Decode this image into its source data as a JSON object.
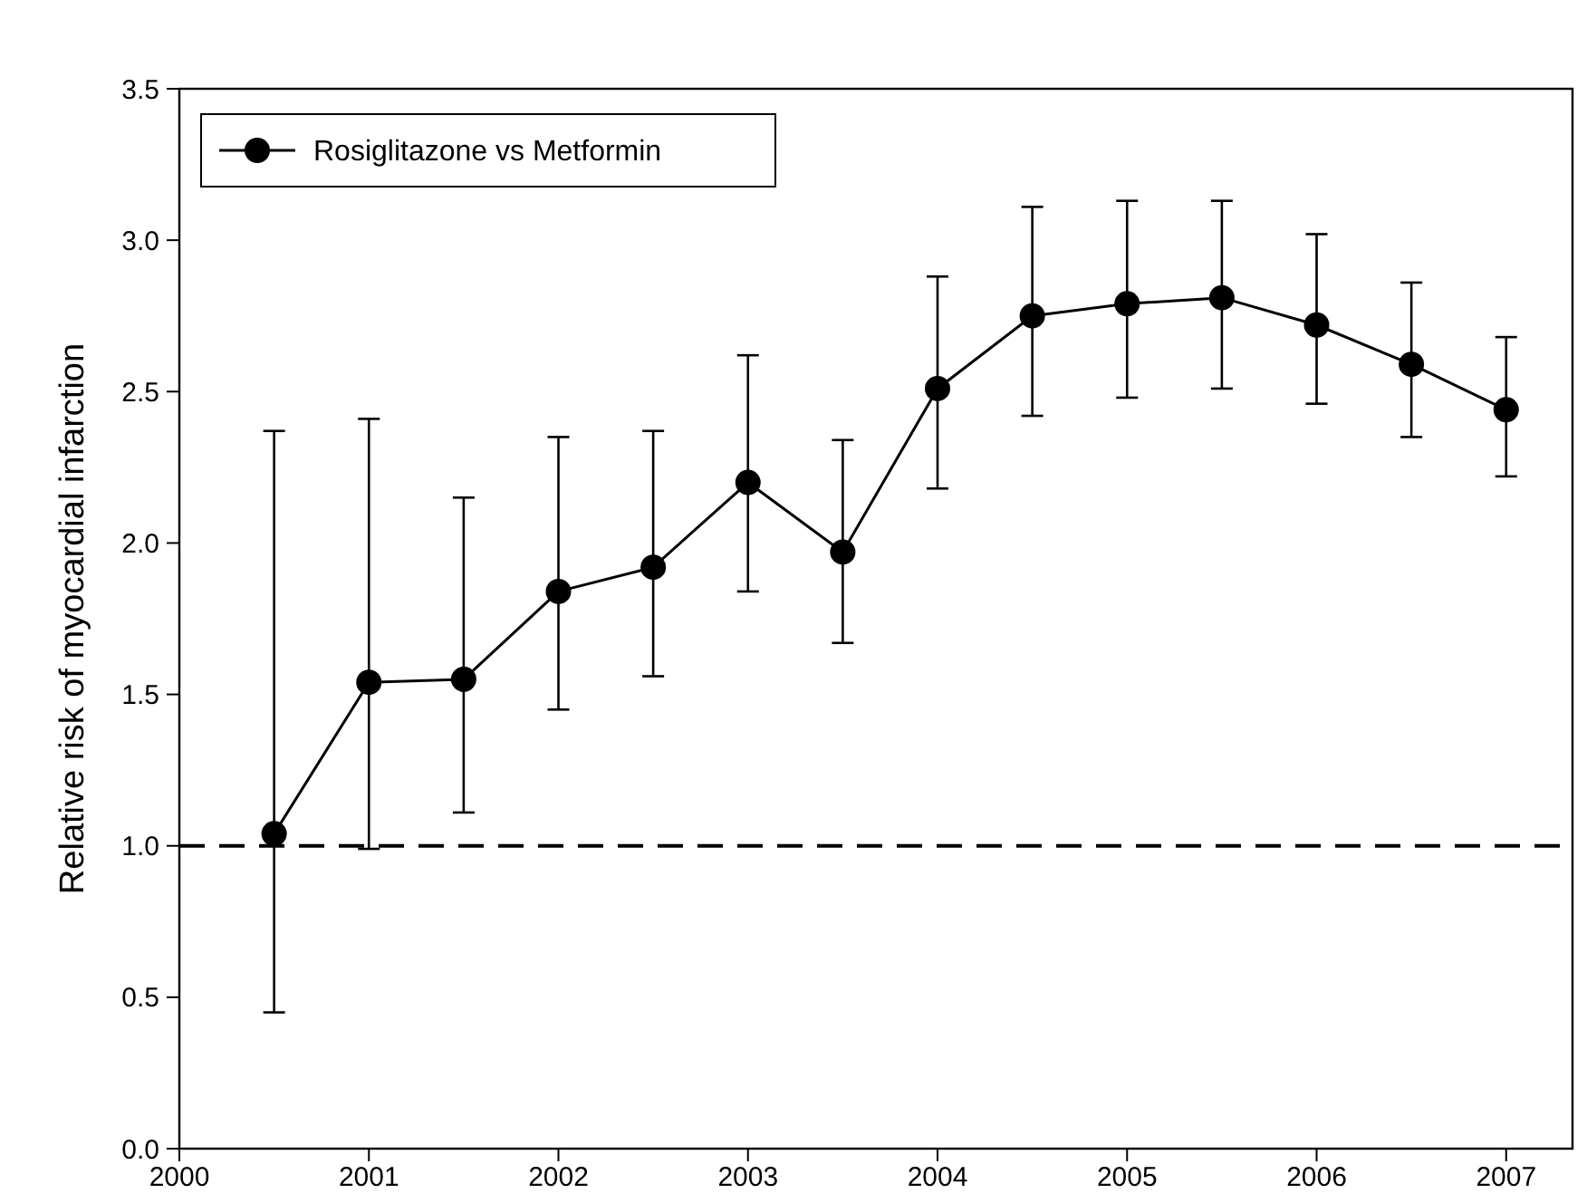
{
  "chart_data": {
    "type": "line",
    "ylabel": "Relative risk of myocardial infarction",
    "x": [
      2000.5,
      2001,
      2001.5,
      2002,
      2002.5,
      2003,
      2003.5,
      2004,
      2004.5,
      2005,
      2005.5,
      2006,
      2006.5,
      2007
    ],
    "series": [
      {
        "name": "Rosiglitazone vs Metformin",
        "color": "#000000",
        "values": [
          1.04,
          1.54,
          1.55,
          1.84,
          1.92,
          2.2,
          1.97,
          2.51,
          2.75,
          2.79,
          2.81,
          2.72,
          2.59,
          2.44
        ],
        "errors": [
          [
            0.45,
            2.37
          ],
          [
            0.99,
            2.41
          ],
          [
            1.11,
            2.15
          ],
          [
            1.45,
            2.35
          ],
          [
            1.56,
            2.37
          ],
          [
            1.84,
            2.62
          ],
          [
            1.67,
            2.34
          ],
          [
            2.18,
            2.88
          ],
          [
            2.42,
            3.11
          ],
          [
            2.48,
            3.13
          ],
          [
            2.51,
            3.13
          ],
          [
            2.46,
            3.02
          ],
          [
            2.35,
            2.86
          ],
          [
            2.22,
            2.68
          ]
        ]
      }
    ],
    "xlim": [
      2000,
      2007.35
    ],
    "xticks": [
      2000,
      2001,
      2002,
      2003,
      2004,
      2005,
      2006,
      2007
    ],
    "ylim": [
      0,
      3.5
    ],
    "yticks": [
      {
        "value": 0,
        "label": "0.0"
      },
      {
        "value": 0.5,
        "label": "0.5"
      },
      {
        "value": 1,
        "label": "1.0"
      },
      {
        "value": 1.5,
        "label": "1.5"
      },
      {
        "value": 2,
        "label": "2.0"
      },
      {
        "value": 2.5,
        "label": "2.5"
      },
      {
        "value": 3,
        "label": "3.0"
      },
      {
        "value": 3.5,
        "label": "3.5"
      }
    ],
    "ref_lines": [
      {
        "axis": "y",
        "value": 1,
        "color": "#000000",
        "line_style": "dashed"
      }
    ],
    "grid": false,
    "legend": "top left",
    "marker": "circle",
    "line_style": "solid"
  }
}
